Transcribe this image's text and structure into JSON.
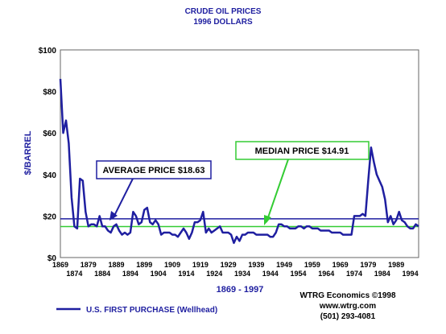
{
  "chart_data": {
    "type": "line",
    "title": "CRUDE OIL PRICES",
    "subtitle": "1996 DOLLARS",
    "ylabel": "$/BARREL",
    "xrange_label": "1869 - 1997",
    "ylim": [
      0,
      100
    ],
    "xlim": [
      1869,
      1997
    ],
    "y_ticks": [
      "$0",
      "$20",
      "$40",
      "$60",
      "$80",
      "$100"
    ],
    "x_ticks_upper": [
      "1869",
      "1879",
      "1889",
      "1899",
      "1909",
      "1919",
      "1929",
      "1939",
      "1949",
      "1959",
      "1969",
      "1979",
      "1989"
    ],
    "x_ticks_lower": [
      "1874",
      "1884",
      "1894",
      "1904",
      "1914",
      "1924",
      "1934",
      "1944",
      "1954",
      "1964",
      "1974",
      "1984",
      "1994"
    ],
    "grid": false,
    "series": [
      {
        "name": "U.S. FIRST PURCHASE (Wellhead)",
        "color": "#1f1fa0",
        "x": [
          1869,
          1870,
          1871,
          1872,
          1873,
          1874,
          1875,
          1876,
          1877,
          1878,
          1879,
          1880,
          1881,
          1882,
          1883,
          1884,
          1885,
          1886,
          1887,
          1888,
          1889,
          1890,
          1891,
          1892,
          1893,
          1894,
          1895,
          1896,
          1897,
          1898,
          1899,
          1900,
          1901,
          1902,
          1903,
          1904,
          1905,
          1906,
          1907,
          1908,
          1909,
          1910,
          1911,
          1912,
          1913,
          1914,
          1915,
          1916,
          1917,
          1918,
          1919,
          1920,
          1921,
          1922,
          1923,
          1924,
          1925,
          1926,
          1927,
          1928,
          1929,
          1930,
          1931,
          1932,
          1933,
          1934,
          1935,
          1936,
          1937,
          1938,
          1939,
          1940,
          1941,
          1942,
          1943,
          1944,
          1945,
          1946,
          1947,
          1948,
          1949,
          1950,
          1951,
          1952,
          1953,
          1954,
          1955,
          1956,
          1957,
          1958,
          1959,
          1960,
          1961,
          1962,
          1963,
          1964,
          1965,
          1966,
          1967,
          1968,
          1969,
          1970,
          1971,
          1972,
          1973,
          1974,
          1975,
          1976,
          1977,
          1978,
          1979,
          1980,
          1981,
          1982,
          1983,
          1984,
          1985,
          1986,
          1987,
          1988,
          1989,
          1990,
          1991,
          1992,
          1993,
          1994,
          1995,
          1996,
          1997
        ],
        "values": [
          86,
          60,
          66,
          55,
          29,
          15,
          14,
          38,
          37,
          22,
          15,
          16,
          16,
          15,
          20,
          15,
          15,
          13,
          12,
          15,
          16,
          13,
          11,
          12,
          11,
          12,
          22,
          20,
          16,
          17,
          23,
          24,
          17,
          16,
          18,
          16,
          11,
          12,
          12,
          12,
          11,
          11,
          10,
          12,
          14,
          12,
          9,
          12,
          17,
          17,
          18,
          22,
          12,
          14,
          12,
          13,
          14,
          15,
          12,
          12,
          12,
          11,
          7,
          10,
          8,
          11,
          11,
          12,
          12,
          12,
          11,
          11,
          11,
          11,
          11,
          10,
          10,
          12,
          16,
          16,
          15,
          15,
          14,
          14,
          14,
          15,
          15,
          14,
          15,
          15,
          14,
          14,
          14,
          13,
          13,
          13,
          13,
          12,
          12,
          12,
          12,
          11,
          11,
          11,
          11,
          20,
          20,
          20,
          21,
          20,
          37,
          53,
          46,
          40,
          37,
          34,
          28,
          17,
          20,
          16,
          18,
          22,
          18,
          17,
          15,
          14,
          14,
          16,
          15
        ]
      }
    ],
    "reference_lines": [
      {
        "label": "AVERAGE PRICE $18.63",
        "value": 18.63,
        "color": "#1f1fa0"
      },
      {
        "label": "MEDIAN PRICE $14.91",
        "value": 14.91,
        "color": "#33cc33"
      }
    ],
    "annotations": {
      "average": {
        "text": "AVERAGE PRICE $18.63",
        "border_color": "#1f1fa0",
        "arrow_color": "#1f1fa0",
        "arrow_to_x": 1887
      },
      "median": {
        "text": "MEDIAN PRICE $14.91",
        "border_color": "#33cc33",
        "arrow_color": "#33cc33",
        "arrow_to_x": 1940
      }
    },
    "legend": {
      "label": "U.S. FIRST PURCHASE (Wellhead)",
      "position": "bottom-left"
    },
    "credit": [
      "WTRG Economics ©1998",
      "www.wtrg.com",
      "(501) 293-4081"
    ]
  }
}
